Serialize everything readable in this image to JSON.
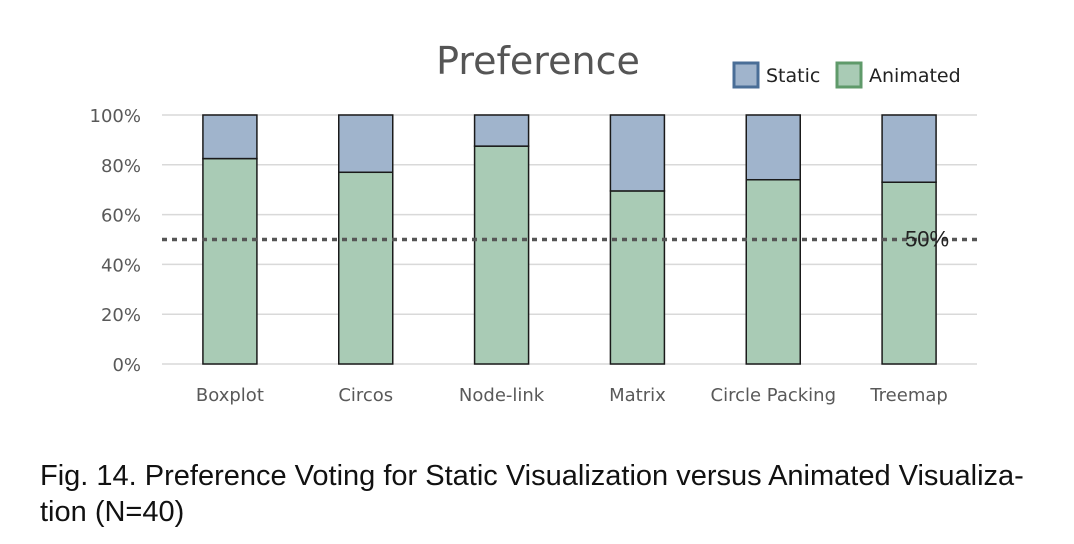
{
  "figure": {
    "caption": "Fig. 14. Preference Voting for Static Visualization versus Animated Visualiza- tion (N=40)"
  },
  "chart_data": {
    "type": "bar",
    "stacked": true,
    "title": "Preference",
    "categories": [
      "Boxplot",
      "Circos",
      "Node-link",
      "Matrix",
      "Circle Packing",
      "Treemap"
    ],
    "series": [
      {
        "name": "Animated",
        "values": [
          82.5,
          77,
          87.5,
          69.5,
          74,
          73
        ],
        "color": "#a9cbb5",
        "legend_border": "#5f9a6a"
      },
      {
        "name": "Static",
        "values": [
          17.5,
          23,
          12.5,
          30.5,
          26,
          27
        ],
        "color": "#a0b4cc",
        "legend_border": "#4a6e97"
      }
    ],
    "y_ticks": [
      "0%",
      "20%",
      "40%",
      "60%",
      "80%",
      "100%"
    ],
    "ylim": [
      0,
      100
    ],
    "xlabel": "",
    "ylabel": "",
    "grid": true,
    "legend_position": "top-right",
    "reference_line": {
      "value": 50,
      "label": "50%",
      "style": "dotted"
    },
    "colors": {
      "bar_outline": "#1a1a1a",
      "grid": "#d9d9d9",
      "tick_text": "#595959",
      "title_text": "#555555",
      "reference_line": "#555555"
    }
  }
}
